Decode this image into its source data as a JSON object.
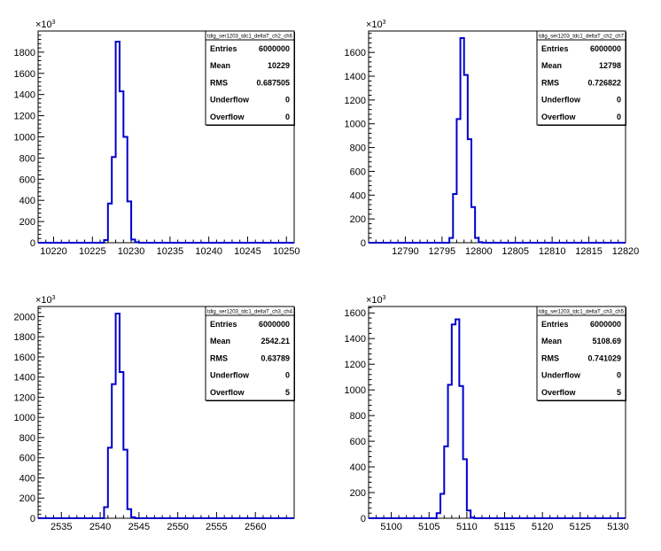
{
  "figure": {
    "background": "#ffffff",
    "frame_color": "#000000",
    "hist_color": "#0000cc"
  },
  "chart_data": [
    {
      "type": "histogram",
      "title": "tdig_ser1203_tdc1_deltaT_ch2_ch6",
      "xlim": [
        10218,
        10251
      ],
      "ylim": [
        0,
        2000
      ],
      "y_exponent_label": "×10³",
      "x_ticks": [
        10220,
        10225,
        10230,
        10235,
        10240,
        10245,
        10250
      ],
      "y_ticks": [
        0,
        200,
        400,
        600,
        800,
        1000,
        1200,
        1400,
        1600,
        1800
      ],
      "bin_edges": [
        10226.5,
        10227,
        10227.5,
        10228,
        10228.5,
        10229,
        10229.5,
        10230,
        10230.5,
        10231,
        10231.5
      ],
      "counts": [
        25,
        370,
        810,
        1900,
        1430,
        1000,
        390,
        30,
        5,
        0
      ],
      "stats": [
        {
          "key": "Entries",
          "value": "6000000"
        },
        {
          "key": "Mean",
          "value": "10229"
        },
        {
          "key": "RMS",
          "value": "0.687505"
        },
        {
          "key": "Underflow",
          "value": "0"
        },
        {
          "key": "Overflow",
          "value": "0"
        }
      ]
    },
    {
      "type": "histogram",
      "title": "tdig_ser1203_tdc1_deltaT_ch2_ch7",
      "xlim": [
        12785,
        12820
      ],
      "ylim": [
        0,
        1780
      ],
      "y_exponent_label": "×10³",
      "x_ticks": [
        12790,
        12795,
        12800,
        12805,
        12810,
        12815,
        12820
      ],
      "y_ticks": [
        0,
        200,
        400,
        600,
        800,
        1000,
        1200,
        1400,
        1600
      ],
      "bin_edges": [
        12796,
        12796.5,
        12797,
        12797.5,
        12798,
        12798.5,
        12799,
        12799.5,
        12800,
        12800.5
      ],
      "counts": [
        40,
        410,
        1040,
        1720,
        1410,
        870,
        300,
        40,
        5
      ],
      "stats": [
        {
          "key": "Entries",
          "value": "6000000"
        },
        {
          "key": "Mean",
          "value": "12798"
        },
        {
          "key": "RMS",
          "value": "0.726822"
        },
        {
          "key": "Underflow",
          "value": "0"
        },
        {
          "key": "Overflow",
          "value": "0"
        }
      ]
    },
    {
      "type": "histogram",
      "title": "tdig_ser1203_tdc1_deltaT_ch3_ch4",
      "xlim": [
        2532,
        2565
      ],
      "ylim": [
        0,
        2100
      ],
      "y_exponent_label": "×10³",
      "x_ticks": [
        2535,
        2540,
        2545,
        2550,
        2555,
        2560
      ],
      "y_ticks": [
        0,
        200,
        400,
        600,
        800,
        1000,
        1200,
        1400,
        1600,
        1800,
        2000
      ],
      "bin_edges": [
        2540.5,
        2541,
        2541.5,
        2542,
        2542.5,
        2543,
        2543.5,
        2544,
        2544.5,
        2545
      ],
      "counts": [
        110,
        700,
        1330,
        2030,
        1450,
        680,
        90,
        10,
        0
      ],
      "stats": [
        {
          "key": "Entries",
          "value": "6000000"
        },
        {
          "key": "Mean",
          "value": "2542.21"
        },
        {
          "key": "RMS",
          "value": "0.63789"
        },
        {
          "key": "Underflow",
          "value": "0"
        },
        {
          "key": "Overflow",
          "value": "5"
        }
      ]
    },
    {
      "type": "histogram",
      "title": "tdig_ser1203_tdc1_deltaT_ch3_ch5",
      "xlim": [
        5097,
        5131
      ],
      "ylim": [
        0,
        1650
      ],
      "y_exponent_label": "×10³",
      "x_ticks": [
        5100,
        5105,
        5110,
        5115,
        5120,
        5125,
        5130
      ],
      "y_ticks": [
        0,
        200,
        400,
        600,
        800,
        1000,
        1200,
        1400,
        1600
      ],
      "bin_edges": [
        5106,
        5106.5,
        5107,
        5107.5,
        5108,
        5108.5,
        5109,
        5109.5,
        5110,
        5110.5,
        5111
      ],
      "counts": [
        40,
        190,
        560,
        1040,
        1510,
        1550,
        1030,
        460,
        60,
        5
      ],
      "stats": [
        {
          "key": "Entries",
          "value": "6000000"
        },
        {
          "key": "Mean",
          "value": "5108.69"
        },
        {
          "key": "RMS",
          "value": "0.741029"
        },
        {
          "key": "Underflow",
          "value": "0"
        },
        {
          "key": "Overflow",
          "value": "5"
        }
      ]
    }
  ]
}
